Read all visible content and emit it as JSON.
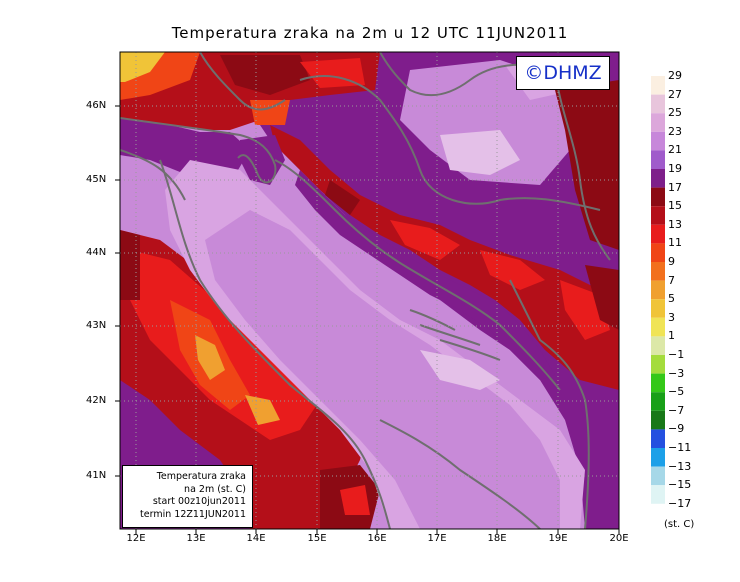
{
  "title": "Temperatura zraka na 2m u 12 UTC 11JUN2011",
  "logo_text": "©DHMZ",
  "info_box": {
    "line1": "Temperatura zraka",
    "line2": "na 2m (st. C)",
    "line3": "start 00z10jun2011",
    "line4": "termin 12Z11JUN2011"
  },
  "latitude_labels": [
    "46N",
    "45N",
    "44N",
    "43N",
    "42N",
    "41N"
  ],
  "longitude_labels": [
    "12E",
    "13E",
    "14E",
    "15E",
    "16E",
    "17E",
    "18E",
    "19E",
    "20E"
  ],
  "colorbar": {
    "labels": [
      "29",
      "27",
      "25",
      "23",
      "21",
      "19",
      "17",
      "15",
      "13",
      "11",
      "9",
      "7",
      "5",
      "3",
      "1",
      "−1",
      "−3",
      "−5",
      "−7",
      "−9",
      "−11",
      "−13",
      "−15",
      "−17"
    ],
    "colors": [
      "#fbefe1",
      "#e8c5dc",
      "#dca7db",
      "#c787da",
      "#a05bcb",
      "#7e1f8a",
      "#8c0a14",
      "#b40f19",
      "#e81c1c",
      "#f04516",
      "#f2701d",
      "#f0a030",
      "#f0c438",
      "#f0e456",
      "#dce8a8",
      "#a4dc3c",
      "#34c818",
      "#18a018",
      "#187818",
      "#2450e0",
      "#1ca0e8",
      "#a6d8e8",
      "#dff4f4"
    ],
    "units": "(st. C)"
  },
  "map_colors": {
    "sea_light": "#c88ad8",
    "sea_lighter": "#d9a4e2",
    "sea_pale": "#e4c0e8",
    "land_purple": "#7f1d8c",
    "coast_line": "#6f6f6f"
  }
}
